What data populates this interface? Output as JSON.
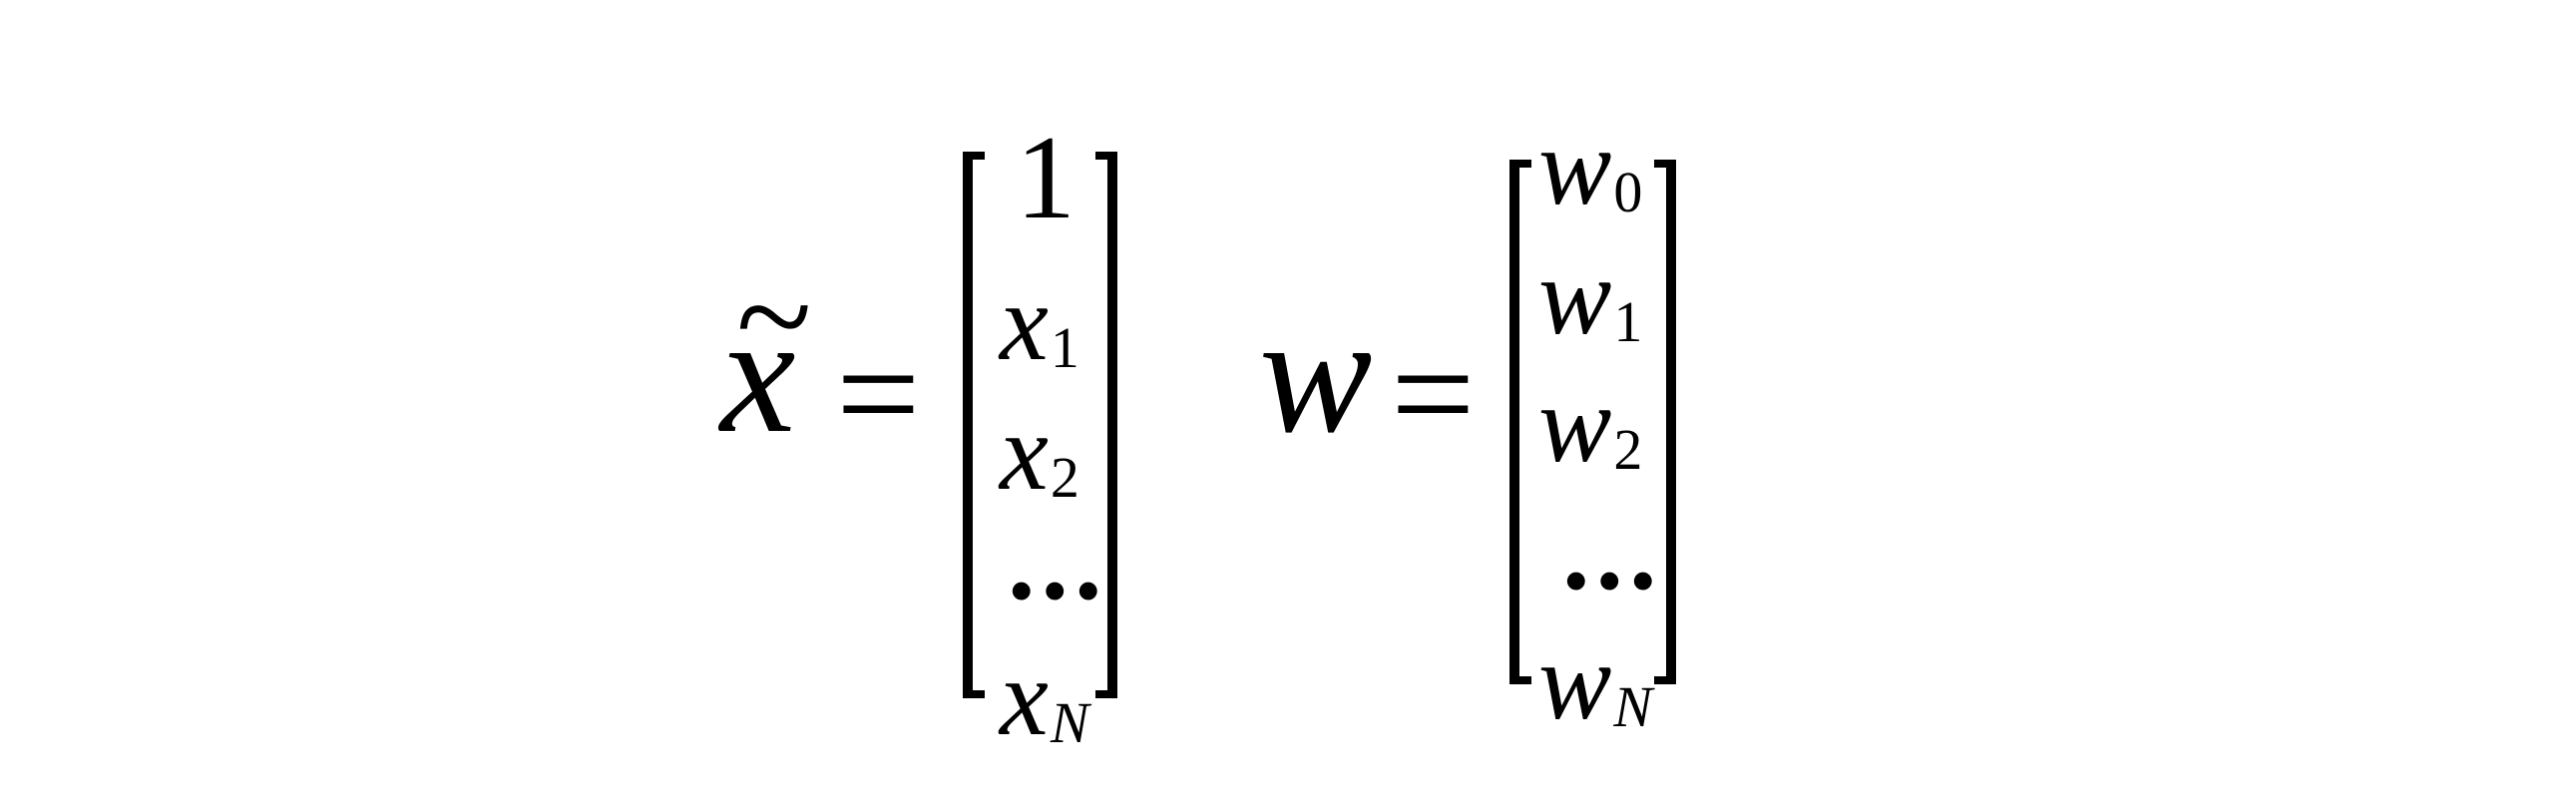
{
  "equation_x": {
    "lhs_base": "x",
    "lhs_accent": "~",
    "equals": "=",
    "entries": [
      {
        "base": "1",
        "sub": ""
      },
      {
        "base": "x",
        "sub": "1"
      },
      {
        "base": "x",
        "sub": "2"
      },
      {
        "base": "...",
        "sub": ""
      },
      {
        "base": "x",
        "sub": "N"
      }
    ]
  },
  "equation_w": {
    "lhs_base": "w",
    "equals": "=",
    "entries": [
      {
        "base": "w",
        "sub": "0"
      },
      {
        "base": "w",
        "sub": "1"
      },
      {
        "base": "w",
        "sub": "2"
      },
      {
        "base": "...",
        "sub": ""
      },
      {
        "base": "w",
        "sub": "N"
      }
    ]
  }
}
